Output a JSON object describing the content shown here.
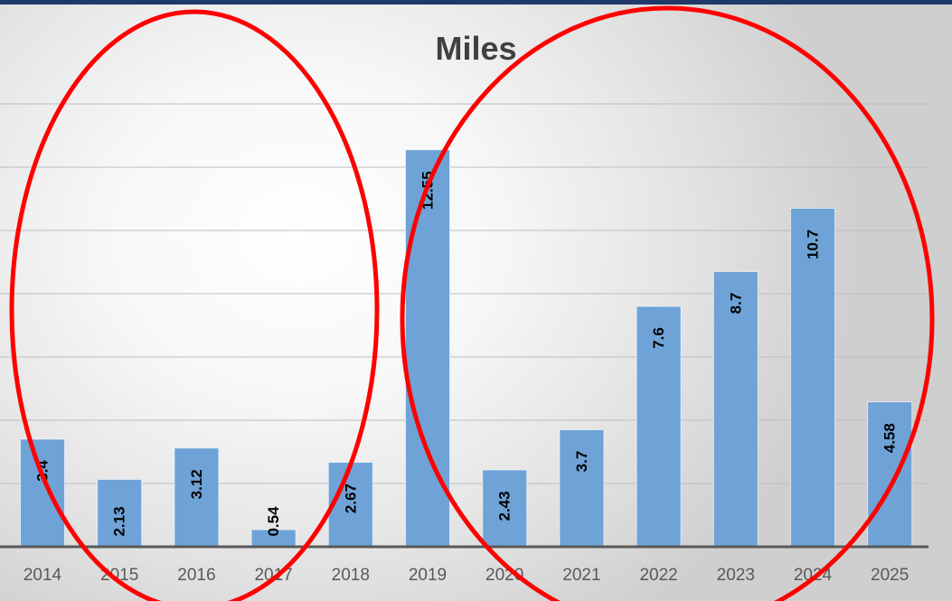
{
  "chart_data": {
    "type": "bar",
    "title": "Miles",
    "xlabel": "",
    "ylabel": "",
    "categories": [
      "2014",
      "2015",
      "2016",
      "2017",
      "2018",
      "2019",
      "2020",
      "2021",
      "2022",
      "2023",
      "2024",
      "2025"
    ],
    "values": [
      3.4,
      2.13,
      3.12,
      0.54,
      2.67,
      12.55,
      2.43,
      3.7,
      7.6,
      8.7,
      10.7,
      4.58
    ],
    "ylim": [
      0,
      14
    ],
    "grid": true,
    "bar_color": "#6fa3d8",
    "annotation_color": "#ff0000",
    "annotations": "two red ellipses circling 2014–2018 and 2019–2025"
  }
}
